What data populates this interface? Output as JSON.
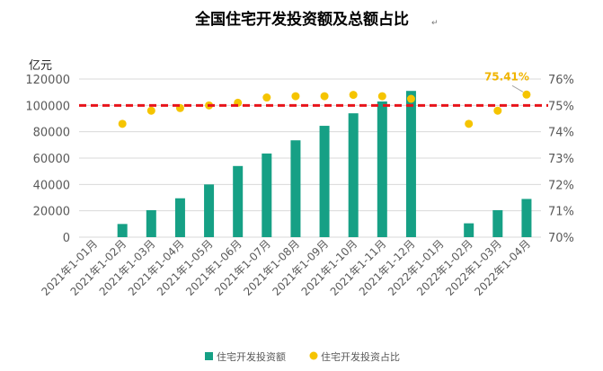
{
  "chart_data": {
    "type": "bar+scatter",
    "title": "全国住宅开发投资额及总额占比",
    "title_suffix": "↵",
    "left_axis_unit": "亿元",
    "categories": [
      "2021年1-01月",
      "2021年1-02月",
      "2021年1-03月",
      "2021年1-04月",
      "2021年1-05月",
      "2021年1-06月",
      "2021年1-07月",
      "2021年1-08月",
      "2021年1-09月",
      "2021年1-10月",
      "2021年1-11月",
      "2021年1-12月",
      "2022年1-01月",
      "2022年1-02月",
      "2022年1-03月",
      "2022年1-04月"
    ],
    "series": [
      {
        "name": "住宅开发投资额",
        "axis": "left",
        "kind": "bar",
        "values": [
          null,
          10000,
          20500,
          29500,
          40000,
          54000,
          63500,
          73500,
          84500,
          94000,
          103000,
          111000,
          null,
          10500,
          20500,
          29000
        ]
      },
      {
        "name": "住宅开发投资占比",
        "axis": "right",
        "kind": "scatter",
        "values": [
          null,
          74.3,
          74.8,
          74.9,
          75.0,
          75.1,
          75.3,
          75.35,
          75.35,
          75.4,
          75.35,
          75.25,
          null,
          74.3,
          74.8,
          75.41
        ]
      }
    ],
    "left_axis": {
      "min": 0,
      "max": 120000,
      "step": 20000,
      "tick_labels": [
        "0",
        "20000",
        "40000",
        "60000",
        "80000",
        "100000",
        "120000"
      ]
    },
    "right_axis": {
      "min": 70,
      "max": 76,
      "step": 1,
      "tick_labels": [
        "70%",
        "71%",
        "72%",
        "73%",
        "74%",
        "75%",
        "76%"
      ]
    },
    "reference_line": {
      "axis": "right",
      "value": 75.0,
      "style": "dashed"
    },
    "annotation": {
      "text": "75.41%",
      "category_index": 15
    },
    "legend": {
      "position": "bottom",
      "items": [
        "住宅开发投资额",
        "住宅开发投资占比"
      ]
    },
    "colors": {
      "bar": "#16a085",
      "dot": "#f5c400",
      "ref_line": "#e8141b",
      "annotation": "#f0b400",
      "grid": "#d9d9d9",
      "axis_text": "#595959",
      "title": "#000000"
    }
  }
}
